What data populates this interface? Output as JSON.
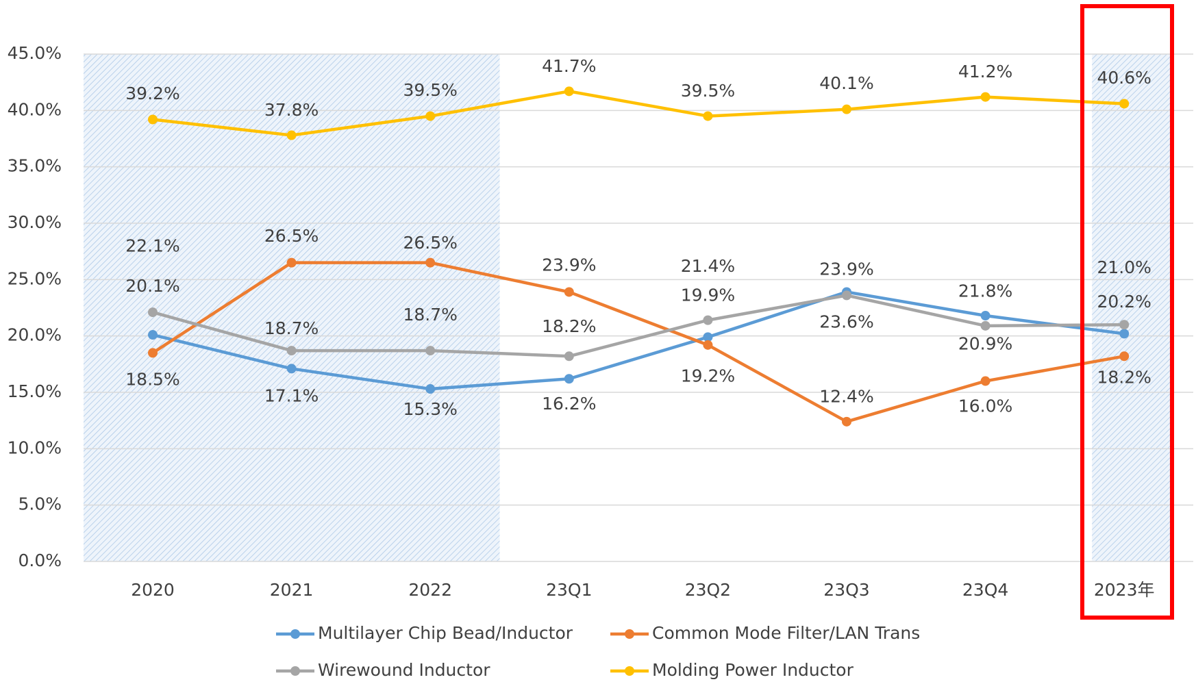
{
  "chart_data": {
    "type": "line",
    "categories": [
      "2020",
      "2021",
      "2022",
      "23Q1",
      "23Q2",
      "23Q3",
      "23Q4",
      "2023年"
    ],
    "series": [
      {
        "name": "Multilayer Chip Bead/Inductor",
        "color": "#5b9bd5",
        "values": [
          20.1,
          17.1,
          15.3,
          16.2,
          19.9,
          23.9,
          21.8,
          20.2
        ],
        "value_labels": [
          "20.1%",
          "17.1%",
          "15.3%",
          "16.2%",
          "19.9%",
          "23.9%",
          "21.8%",
          "20.2%"
        ]
      },
      {
        "name": "Common Mode Filter/LAN Trans",
        "color": "#ed7d31",
        "values": [
          18.5,
          26.5,
          26.5,
          23.9,
          19.2,
          12.4,
          16.0,
          18.2
        ],
        "value_labels": [
          "18.5%",
          "26.5%",
          "26.5%",
          "23.9%",
          "19.2%",
          "12.4%",
          "16.0%",
          "18.2%"
        ]
      },
      {
        "name": "Wirewound Inductor",
        "color": "#a5a5a5",
        "values": [
          22.1,
          18.7,
          18.7,
          18.2,
          21.4,
          23.6,
          20.9,
          21.0
        ],
        "value_labels": [
          "22.1%",
          "18.7%",
          "18.7%",
          "18.2%",
          "21.4%",
          "23.6%",
          "20.9%",
          "21.0%"
        ]
      },
      {
        "name": "Molding Power Inductor",
        "color": "#ffc000",
        "values": [
          39.2,
          37.8,
          39.5,
          41.7,
          39.5,
          40.1,
          41.2,
          40.6
        ],
        "value_labels": [
          "39.2%",
          "37.8%",
          "39.5%",
          "41.7%",
          "39.5%",
          "40.1%",
          "41.2%",
          "40.6%"
        ]
      }
    ],
    "ylim": [
      0,
      45
    ],
    "yticks": [
      {
        "value": 0,
        "label": "0.0%"
      },
      {
        "value": 5,
        "label": "5.0%"
      },
      {
        "value": 10,
        "label": "10.0%"
      },
      {
        "value": 15,
        "label": "15.0%"
      },
      {
        "value": 20,
        "label": "20.0%"
      },
      {
        "value": 25,
        "label": "25.0%"
      },
      {
        "value": 30,
        "label": "30.0%"
      },
      {
        "value": 35,
        "label": "35.0%"
      },
      {
        "value": 40,
        "label": "40.0%"
      },
      {
        "value": 45,
        "label": "45.0%"
      }
    ],
    "grid": true
  }
}
